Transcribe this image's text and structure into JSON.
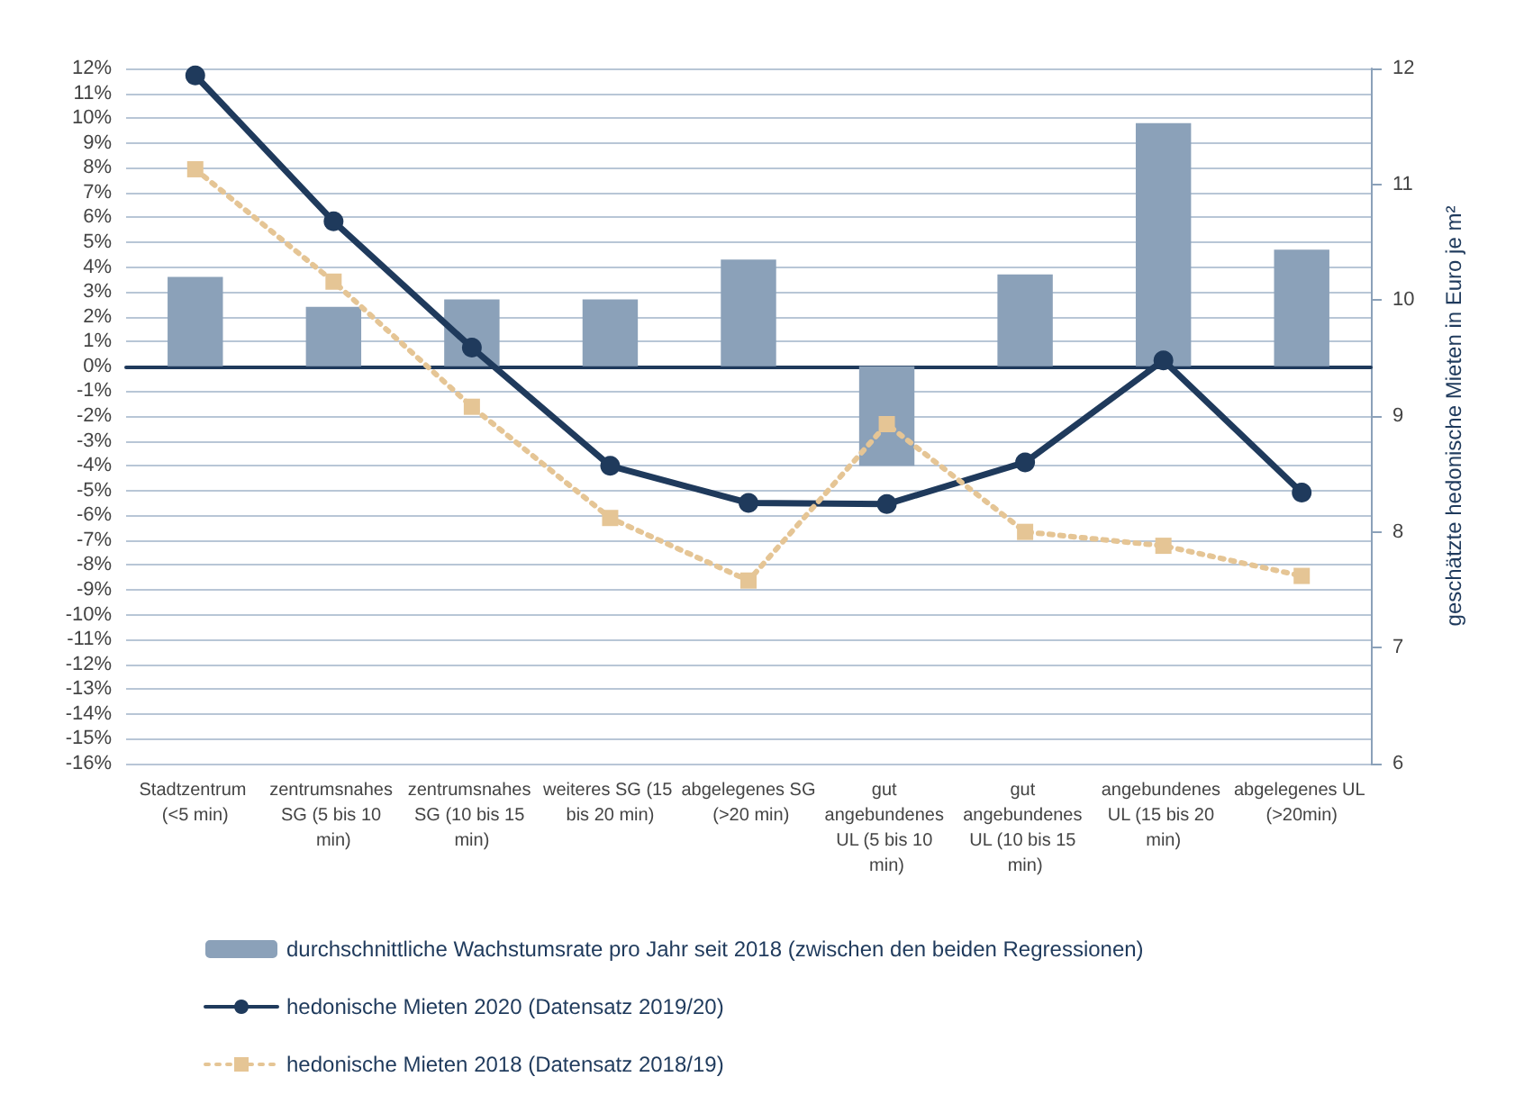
{
  "chart_data": {
    "type": "bar",
    "y2label": "geschätzte hedonische Mieten in Euro je m²",
    "categories": [
      "Stadtzentrum (<5 min)",
      "zentrumsnahes SG (5 bis 10 min)",
      "zentrumsnahes SG (10 bis 15 min)",
      "weiteres SG (15 bis 20 min)",
      "abgelegenes SG (>20 min)",
      "gut angebundenes UL (5 bis 10 min)",
      "gut angebundenes UL (10 bis 15 min)",
      "angebundenes UL (15 bis 20 min)",
      "abgelegenes UL (>20min)"
    ],
    "series": [
      {
        "name": "durchschnittliche Wachstumsrate pro Jahr seit 2018 (zwischen den beiden Regressionen)",
        "color": "#8ba1b9",
        "values": [
          3.6,
          2.4,
          2.7,
          2.7,
          4.3,
          -4.0,
          3.7,
          9.8,
          4.7
        ]
      },
      {
        "name": "hedonische Mieten 2020 (Datensatz 2019/20)",
        "type": "line",
        "axis": "y2",
        "color": "#1f3a5c",
        "marker": "circle",
        "line_style": "solid",
        "values": [
          11.94,
          10.68,
          9.59,
          8.57,
          8.25,
          8.24,
          8.6,
          9.48,
          8.34
        ]
      },
      {
        "name": "hedonische Mieten 2018 (Datensatz 2018/19)",
        "type": "line",
        "axis": "y2",
        "color": "#e5c595",
        "marker": "square",
        "line_style": "dotted",
        "values": [
          11.13,
          10.16,
          9.08,
          8.12,
          7.58,
          8.93,
          8.0,
          7.88,
          7.62
        ]
      }
    ],
    "ylim": [
      -16,
      12
    ],
    "yticks": [
      {
        "value": -16,
        "label": "-16%"
      },
      {
        "value": -15,
        "label": "-15%"
      },
      {
        "value": -14,
        "label": "-14%"
      },
      {
        "value": -13,
        "label": "-13%"
      },
      {
        "value": -12,
        "label": "-12%"
      },
      {
        "value": -11,
        "label": "-11%"
      },
      {
        "value": -10,
        "label": "-10%"
      },
      {
        "value": -9,
        "label": "-9%"
      },
      {
        "value": -8,
        "label": "-8%"
      },
      {
        "value": -7,
        "label": "-7%"
      },
      {
        "value": -6,
        "label": "-6%"
      },
      {
        "value": -5,
        "label": "-5%"
      },
      {
        "value": -4,
        "label": "-4%"
      },
      {
        "value": -3,
        "label": "-3%"
      },
      {
        "value": -2,
        "label": "-2%"
      },
      {
        "value": -1,
        "label": "-1%"
      },
      {
        "value": 0,
        "label": "0%"
      },
      {
        "value": 1,
        "label": "1%"
      },
      {
        "value": 2,
        "label": "2%"
      },
      {
        "value": 3,
        "label": "3%"
      },
      {
        "value": 4,
        "label": "4%"
      },
      {
        "value": 5,
        "label": "5%"
      },
      {
        "value": 6,
        "label": "6%"
      },
      {
        "value": 7,
        "label": "7%"
      },
      {
        "value": 8,
        "label": "8%"
      },
      {
        "value": 9,
        "label": "9%"
      },
      {
        "value": 10,
        "label": "10%"
      },
      {
        "value": 11,
        "label": "11%"
      },
      {
        "value": 12,
        "label": "12%"
      }
    ],
    "y2lim": [
      6,
      12
    ],
    "y2ticks": [
      6,
      7,
      8,
      9,
      10,
      11,
      12
    ],
    "grid": "y",
    "legend": "bottom"
  }
}
